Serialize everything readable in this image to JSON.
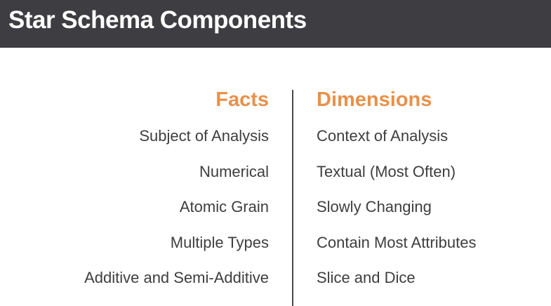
{
  "title": "Star Schema Components",
  "colors": {
    "title_bar": "#3d3d42",
    "accent": "#e8914a",
    "text": "#3e3e3e"
  },
  "facts": {
    "heading": "Facts",
    "items": [
      "Subject of Analysis",
      "Numerical",
      "Atomic Grain",
      "Multiple Types",
      "Additive and Semi-Additive"
    ]
  },
  "dimensions": {
    "heading": "Dimensions",
    "items": [
      "Context of Analysis",
      "Textual (Most Often)",
      "Slowly Changing",
      "Contain Most Attributes",
      "Slice and Dice"
    ]
  }
}
